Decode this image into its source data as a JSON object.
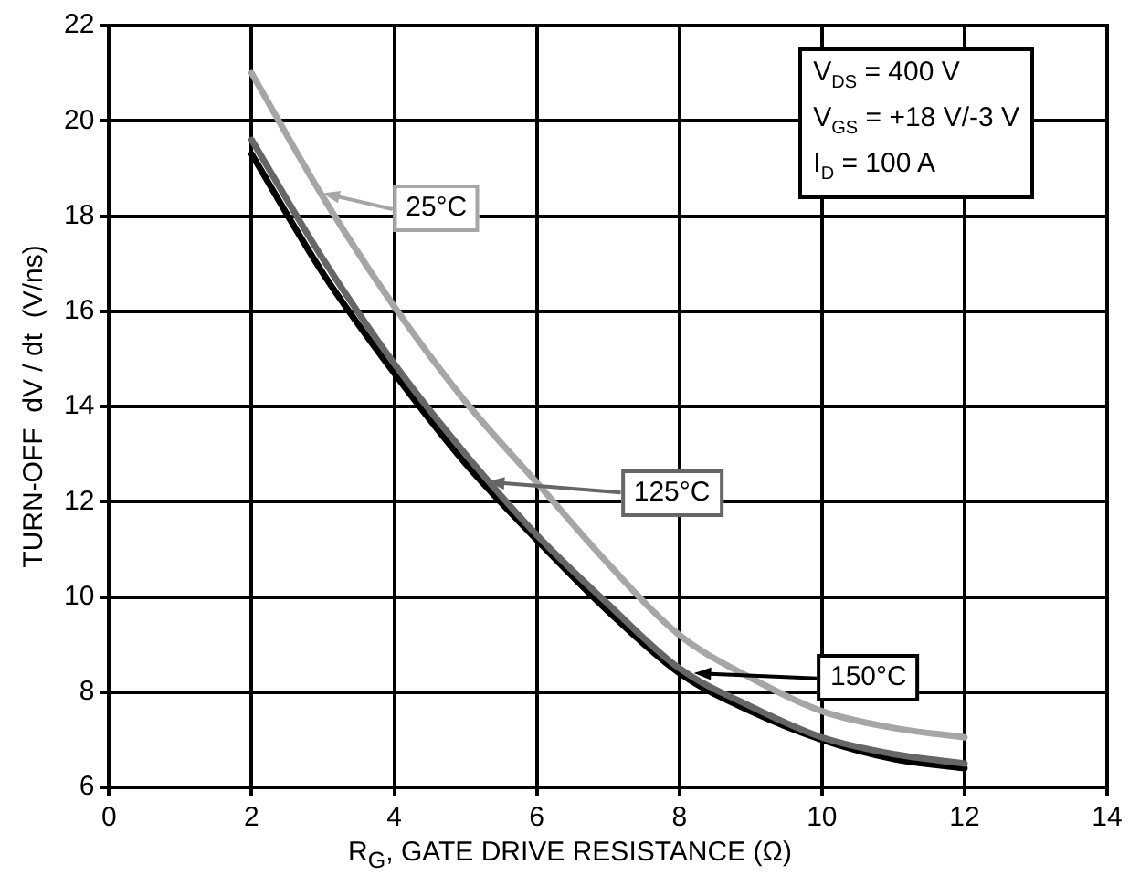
{
  "chart_data": {
    "type": "line",
    "xlabel": "R$_{G}$, GATE DRIVE RESISTANCE (Ω)",
    "ylabel": "TURN-OFF  dV / dt  (V/ns)",
    "x": [
      2,
      3,
      4,
      5,
      6,
      7,
      8,
      9,
      10,
      11,
      12
    ],
    "series": [
      {
        "color": "#a6a6a6",
        "values": [
          21.0,
          18.4,
          16.1,
          14.1,
          12.4,
          10.7,
          9.2,
          8.3,
          7.6,
          7.25,
          7.05
        ]
      },
      {
        "color": "#666666",
        "values": [
          19.6,
          17.1,
          14.9,
          13.0,
          11.3,
          9.85,
          8.5,
          7.7,
          7.05,
          6.7,
          6.5
        ]
      },
      {
        "color": "#000000",
        "values": [
          19.3,
          16.8,
          14.7,
          12.8,
          11.2,
          9.7,
          8.4,
          7.6,
          7.0,
          6.6,
          6.4
        ]
      }
    ],
    "annotations": [
      "V$_{DS}$ = 400 V",
      "V$_{GS}$ = +18 V/-3 V",
      "I$_{D}$ = 100 A",
      "25°C",
      "125°C",
      "150°C"
    ],
    "xlim": [
      0,
      14
    ],
    "xticks": [
      0,
      2,
      4,
      6,
      8,
      10,
      12,
      14
    ],
    "ylim": [
      6,
      22
    ],
    "yticks": [
      6,
      8,
      10,
      12,
      14,
      16,
      18,
      20,
      22
    ],
    "grid": true,
    "legend": false,
    "marker": "none",
    "line_style": "solid"
  }
}
